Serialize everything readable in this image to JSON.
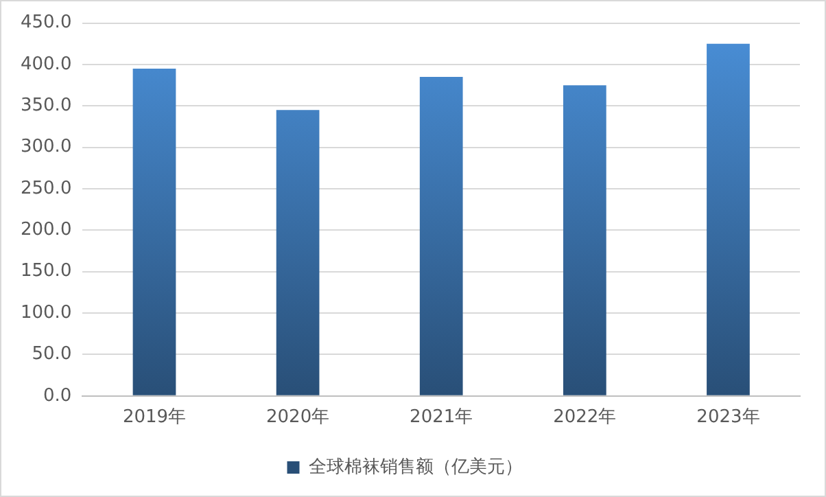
{
  "chart_data": {
    "type": "bar",
    "categories": [
      "2019年",
      "2020年",
      "2021年",
      "2022年",
      "2023年"
    ],
    "series": [
      {
        "name": "全球棉袜销售额（亿美元）",
        "color": "#4a90d9",
        "values": [
          395,
          345,
          385,
          375,
          425
        ]
      }
    ],
    "ylim": [
      0,
      450
    ],
    "yticks": [
      {
        "value": 0,
        "label": "0.0"
      },
      {
        "value": 50,
        "label": "50.0"
      },
      {
        "value": 100,
        "label": "100.0"
      },
      {
        "value": 150,
        "label": "150.0"
      },
      {
        "value": 200,
        "label": "200.0"
      },
      {
        "value": 250,
        "label": "250.0"
      },
      {
        "value": 300,
        "label": "300.0"
      },
      {
        "value": 350,
        "label": "350.0"
      },
      {
        "value": 400,
        "label": "400.0"
      },
      {
        "value": 450,
        "label": "450.0"
      }
    ],
    "grid": "y",
    "legend": "bottom"
  }
}
